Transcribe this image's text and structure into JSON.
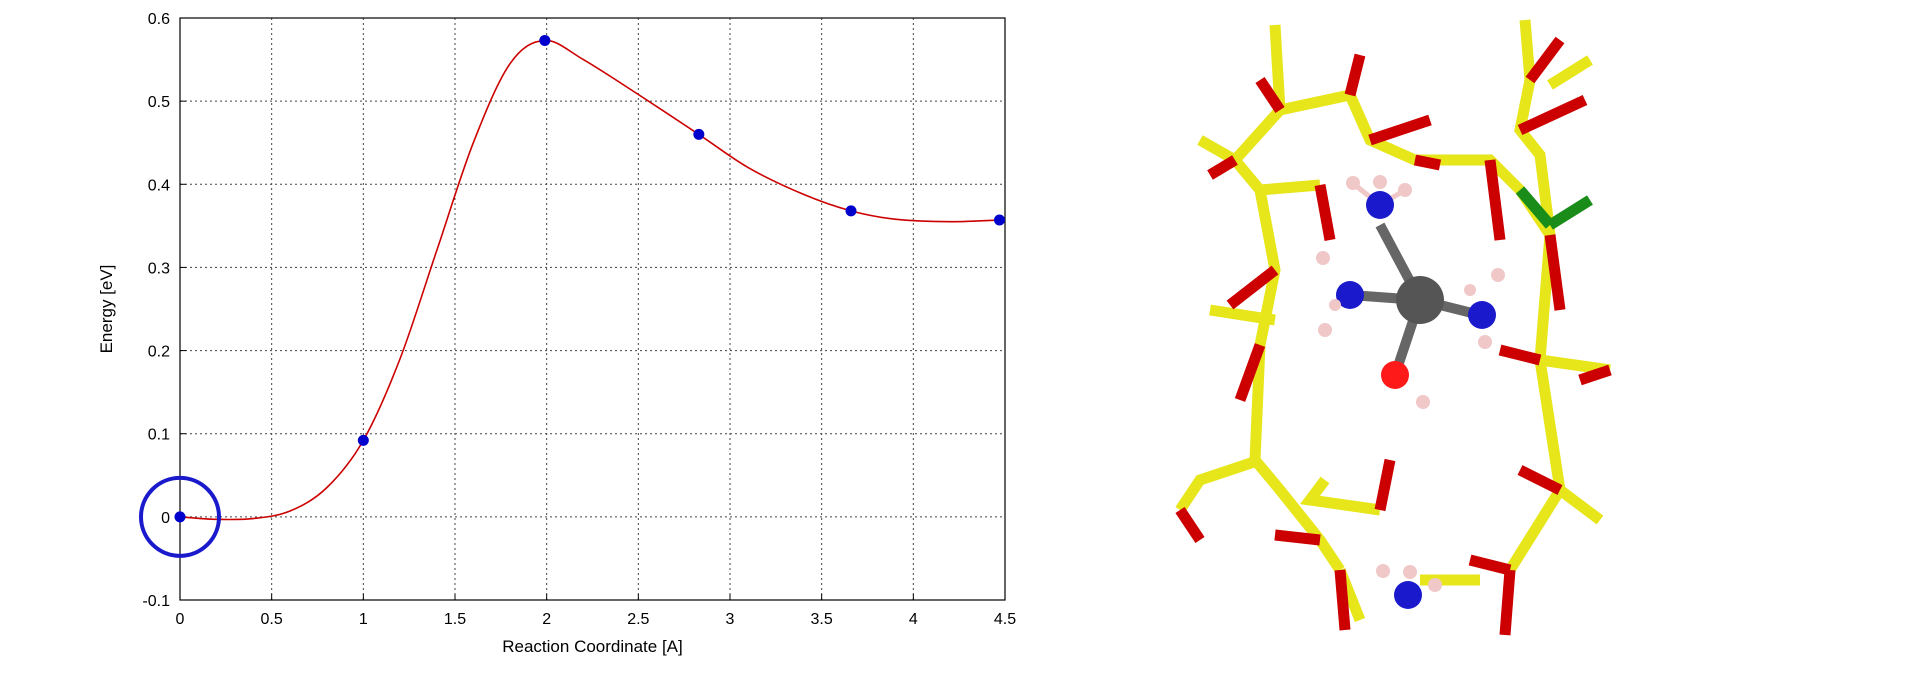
{
  "chart_data": {
    "type": "line",
    "xlabel": "Reaction Coordinate [A]",
    "ylabel": "Energy [eV]",
    "xlim": [
      0,
      4.5
    ],
    "ylim": [
      -0.1,
      0.6
    ],
    "x_ticks": [
      "0",
      "0.5",
      "1",
      "1.5",
      "2",
      "2.5",
      "3",
      "3.5",
      "4",
      "4.5"
    ],
    "y_ticks": [
      "-0.1",
      "0",
      "0.1",
      "0.2",
      "0.3",
      "0.4",
      "0.5",
      "0.6"
    ],
    "grid": true,
    "series": [
      {
        "points": [
          {
            "x": 0.0,
            "y": 0.0
          },
          {
            "x": 1.0,
            "y": 0.092
          },
          {
            "x": 1.99,
            "y": 0.573
          },
          {
            "x": 2.83,
            "y": 0.46
          },
          {
            "x": 3.66,
            "y": 0.368
          },
          {
            "x": 4.47,
            "y": 0.357
          }
        ],
        "curve": [
          {
            "x": 0.0,
            "y": 0.0
          },
          {
            "x": 0.2,
            "y": -0.003
          },
          {
            "x": 0.4,
            "y": -0.002
          },
          {
            "x": 0.6,
            "y": 0.007
          },
          {
            "x": 0.8,
            "y": 0.035
          },
          {
            "x": 1.0,
            "y": 0.092
          },
          {
            "x": 1.2,
            "y": 0.19
          },
          {
            "x": 1.4,
            "y": 0.32
          },
          {
            "x": 1.6,
            "y": 0.45
          },
          {
            "x": 1.8,
            "y": 0.545
          },
          {
            "x": 1.99,
            "y": 0.573
          },
          {
            "x": 2.2,
            "y": 0.55
          },
          {
            "x": 2.5,
            "y": 0.508
          },
          {
            "x": 2.83,
            "y": 0.46
          },
          {
            "x": 3.1,
            "y": 0.42
          },
          {
            "x": 3.4,
            "y": 0.388
          },
          {
            "x": 3.66,
            "y": 0.368
          },
          {
            "x": 3.9,
            "y": 0.358
          },
          {
            "x": 4.2,
            "y": 0.355
          },
          {
            "x": 4.47,
            "y": 0.357
          }
        ]
      }
    ],
    "highlight": {
      "x": 0.0,
      "y": 0.0
    },
    "colors": {
      "line": "#cc0000",
      "points": "#0000cc",
      "highlight": "#1a1acc",
      "grid": "#444444"
    }
  },
  "molecule": {
    "colors": {
      "framework_si": "#e6e61a",
      "framework_o": "#cc0000",
      "nitrogen": "#1a1acc",
      "hydrogen": "#f0c8c8",
      "metal": "#555555",
      "oxygen": "#ff0000",
      "chlorine": "#1a8c1a"
    }
  }
}
